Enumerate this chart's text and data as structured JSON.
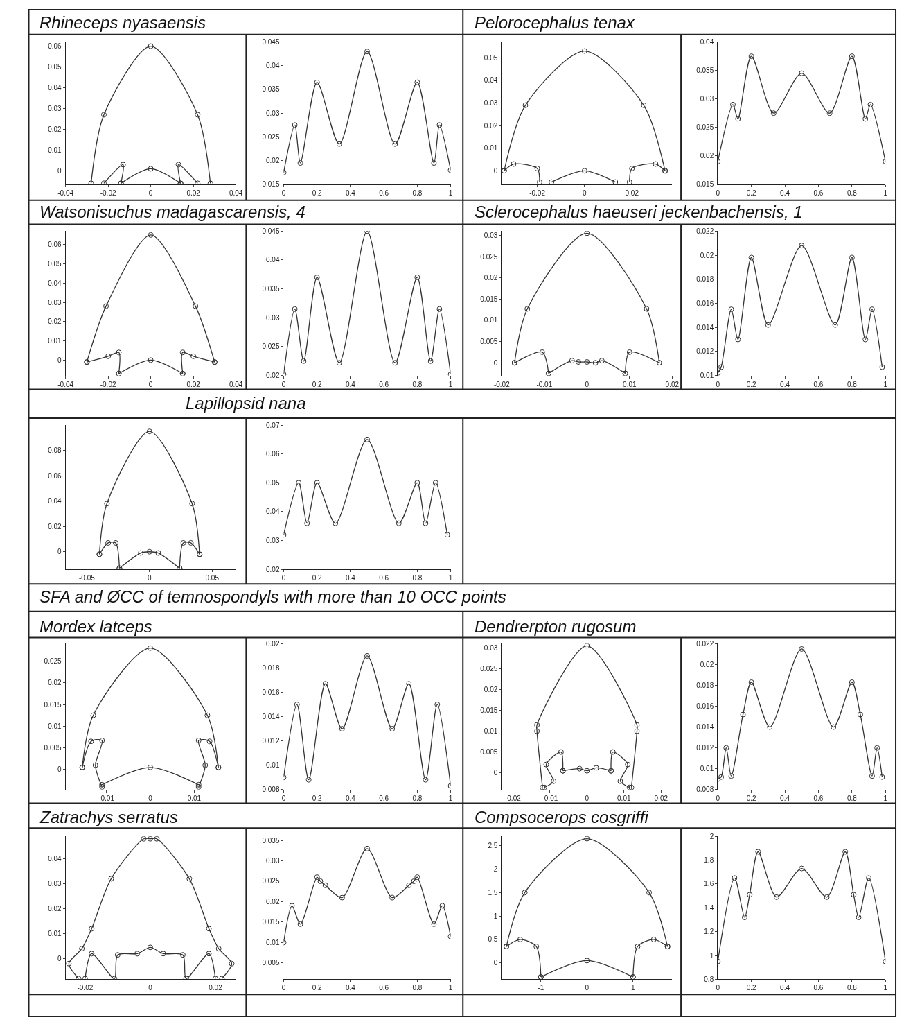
{
  "chart_data": [
    {
      "type": "line",
      "title": "Rhineceps nyasaensis",
      "marker": "circle",
      "line_style": "solid",
      "xlim": [
        -0.04,
        0.04
      ],
      "ylim": [
        -0.0065,
        0.062
      ],
      "xticks": [
        -0.04,
        -0.02,
        0,
        0.02,
        0.04
      ],
      "yticks": [
        0,
        0.01,
        0.02,
        0.03,
        0.04,
        0.05,
        0.06
      ],
      "series": [
        {
          "color": "#333333",
          "x": [
            -0.028,
            -0.022,
            0,
            0.022,
            0.028
          ],
          "values": [
            -0.006,
            0.027,
            0.06,
            0.027,
            -0.006
          ]
        },
        {
          "color": "#333333",
          "x": [
            -0.022,
            -0.013,
            -0.014
          ],
          "values": [
            -0.006,
            0.003,
            -0.006
          ]
        },
        {
          "color": "#333333",
          "x": [
            -0.014,
            0,
            0.014
          ],
          "values": [
            -0.006,
            0.001,
            -0.006
          ]
        },
        {
          "color": "#333333",
          "x": [
            0.014,
            0.013,
            0.022
          ],
          "values": [
            -0.006,
            0.003,
            -0.006
          ]
        }
      ]
    },
    {
      "type": "line",
      "marker": "circle",
      "line_style": "solid",
      "xlim": [
        0,
        1
      ],
      "ylim": [
        0.015,
        0.045
      ],
      "xticks": [
        0,
        0.2,
        0.4,
        0.6,
        0.8,
        1
      ],
      "yticks": [
        0.015,
        0.02,
        0.025,
        0.03,
        0.035,
        0.04,
        0.045
      ],
      "series": [
        {
          "color": "#333333",
          "x": [
            0,
            0.067,
            0.1,
            0.2,
            0.333,
            0.5,
            0.667,
            0.8,
            0.9,
            0.933,
            1
          ],
          "values": [
            0.0175,
            0.0275,
            0.0195,
            0.0365,
            0.0235,
            0.043,
            0.0235,
            0.0365,
            0.0195,
            0.0275,
            0.018
          ]
        }
      ]
    },
    {
      "type": "line",
      "title": "Pelorocephalus tenax",
      "marker": "circle",
      "line_style": "solid",
      "xlim": [
        -0.035,
        0.037
      ],
      "ylim": [
        -0.006,
        0.057
      ],
      "xticks": [
        -0.02,
        0,
        0.02
      ],
      "yticks": [
        0,
        0.01,
        0.02,
        0.03,
        0.04,
        0.05
      ],
      "series": [
        {
          "color": "#333333",
          "x": [
            -0.034,
            -0.025,
            0,
            0.025,
            0.034
          ],
          "values": [
            0,
            0.029,
            0.053,
            0.029,
            0
          ]
        },
        {
          "color": "#333333",
          "x": [
            -0.034,
            -0.03,
            -0.02,
            -0.019
          ],
          "values": [
            0,
            0.003,
            0.001,
            -0.005
          ]
        },
        {
          "color": "#333333",
          "x": [
            -0.014,
            0,
            0.013
          ],
          "values": [
            -0.005,
            0,
            -0.005
          ]
        },
        {
          "color": "#333333",
          "x": [
            0.019,
            0.02,
            0.03,
            0.034
          ],
          "values": [
            -0.005,
            0.001,
            0.003,
            0
          ]
        }
      ]
    },
    {
      "type": "line",
      "marker": "circle",
      "line_style": "solid",
      "xlim": [
        0,
        1
      ],
      "ylim": [
        0.015,
        0.04
      ],
      "xticks": [
        0,
        0.2,
        0.4,
        0.6,
        0.8,
        1
      ],
      "yticks": [
        0.015,
        0.02,
        0.025,
        0.03,
        0.035,
        0.04
      ],
      "series": [
        {
          "color": "#333333",
          "x": [
            0,
            0.09,
            0.12,
            0.2,
            0.333,
            0.5,
            0.667,
            0.8,
            0.88,
            0.91,
            1
          ],
          "values": [
            0.019,
            0.029,
            0.0265,
            0.0375,
            0.0275,
            0.0345,
            0.0275,
            0.0375,
            0.0265,
            0.029,
            0.019
          ]
        }
      ]
    },
    {
      "type": "line",
      "title": "Watsonisuchus madagascarensis, 4",
      "marker": "circle",
      "line_style": "solid",
      "xlim": [
        -0.04,
        0.04
      ],
      "ylim": [
        -0.008,
        0.067
      ],
      "xticks": [
        -0.04,
        -0.02,
        0,
        0.02,
        0.04
      ],
      "yticks": [
        0,
        0.01,
        0.02,
        0.03,
        0.04,
        0.05,
        0.06
      ],
      "series": [
        {
          "color": "#333333",
          "x": [
            -0.03,
            -0.021,
            0,
            0.021,
            0.03
          ],
          "values": [
            -0.001,
            0.028,
            0.065,
            0.028,
            -0.001
          ]
        },
        {
          "color": "#333333",
          "x": [
            -0.03,
            -0.02,
            -0.015,
            -0.015
          ],
          "values": [
            -0.001,
            0.002,
            0.004,
            -0.007
          ]
        },
        {
          "color": "#333333",
          "x": [
            -0.015,
            0,
            0.015
          ],
          "values": [
            -0.007,
            0,
            -0.007
          ]
        },
        {
          "color": "#333333",
          "x": [
            0.015,
            0.015,
            0.02,
            0.03
          ],
          "values": [
            -0.007,
            0.004,
            0.002,
            -0.001
          ]
        }
      ]
    },
    {
      "type": "line",
      "marker": "circle",
      "line_style": "solid",
      "xlim": [
        0,
        1
      ],
      "ylim": [
        0.02,
        0.045
      ],
      "xticks": [
        0,
        0.2,
        0.4,
        0.6,
        0.8,
        1
      ],
      "yticks": [
        0.02,
        0.025,
        0.03,
        0.035,
        0.04,
        0.045
      ],
      "series": [
        {
          "color": "#333333",
          "x": [
            0,
            0.067,
            0.12,
            0.2,
            0.333,
            0.5,
            0.667,
            0.8,
            0.88,
            0.933,
            1
          ],
          "values": [
            0.0202,
            0.0315,
            0.0225,
            0.037,
            0.0222,
            0.045,
            0.0222,
            0.037,
            0.0225,
            0.0315,
            0.0202
          ]
        }
      ]
    },
    {
      "type": "line",
      "title": "Sclerocephalus haeuseri jeckenbachensis, 1",
      "marker": "circle",
      "line_style": "solid",
      "xlim": [
        -0.02,
        0.02
      ],
      "ylim": [
        -0.003,
        0.031
      ],
      "xticks": [
        -0.02,
        -0.01,
        0,
        0.01,
        0.02
      ],
      "yticks": [
        0,
        0.005,
        0.01,
        0.015,
        0.02,
        0.025,
        0.03
      ],
      "series": [
        {
          "color": "#333333",
          "x": [
            -0.017,
            -0.014,
            0,
            0.014,
            0.017
          ],
          "values": [
            0,
            0.0127,
            0.0305,
            0.0127,
            0
          ]
        },
        {
          "color": "#333333",
          "x": [
            -0.017,
            -0.0105,
            -0.009
          ],
          "values": [
            0,
            0.0025,
            -0.0025
          ]
        },
        {
          "color": "#333333",
          "x": [
            -0.009,
            -0.0035,
            -0.002,
            0,
            0.002,
            0.0035,
            0.009
          ],
          "values": [
            -0.0025,
            0.0005,
            0.0002,
            0.0002,
            0,
            0.0005,
            -0.0025
          ]
        },
        {
          "color": "#333333",
          "x": [
            0.009,
            0.01,
            0.017
          ],
          "values": [
            -0.0025,
            0.0025,
            0
          ]
        }
      ]
    },
    {
      "type": "line",
      "marker": "circle",
      "line_style": "solid",
      "xlim": [
        0,
        1
      ],
      "ylim": [
        0.01,
        0.022
      ],
      "xticks": [
        0,
        0.2,
        0.4,
        0.6,
        0.8,
        1
      ],
      "yticks": [
        0.01,
        0.012,
        0.014,
        0.016,
        0.018,
        0.02,
        0.022
      ],
      "series": [
        {
          "color": "#333333",
          "x": [
            0,
            0.02,
            0.08,
            0.12,
            0.2,
            0.3,
            0.5,
            0.7,
            0.8,
            0.88,
            0.92,
            0.98
          ],
          "values": [
            0.0102,
            0.0107,
            0.0155,
            0.013,
            0.0198,
            0.0142,
            0.0208,
            0.0142,
            0.0198,
            0.013,
            0.0155,
            0.0107
          ]
        }
      ]
    },
    {
      "type": "line",
      "title": "Lapillopsid nana",
      "marker": "circle",
      "line_style": "solid",
      "xlim": [
        -0.067,
        0.069
      ],
      "ylim": [
        -0.014,
        0.1
      ],
      "xticks": [
        -0.05,
        0,
        0.05
      ],
      "yticks": [
        0,
        0.02,
        0.04,
        0.06,
        0.08
      ],
      "series": [
        {
          "color": "#333333",
          "x": [
            -0.04,
            -0.034,
            0,
            0.034,
            0.04
          ],
          "values": [
            -0.002,
            0.038,
            0.095,
            0.038,
            -0.002
          ]
        },
        {
          "color": "#333333",
          "x": [
            -0.04,
            -0.033,
            -0.027,
            -0.024
          ],
          "values": [
            -0.002,
            0.007,
            0.007,
            -0.013
          ]
        },
        {
          "color": "#333333",
          "x": [
            -0.024,
            -0.007,
            0,
            0.007,
            0.024
          ],
          "values": [
            -0.013,
            -0.001,
            0,
            -0.001,
            -0.013
          ]
        },
        {
          "color": "#333333",
          "x": [
            0.024,
            0.027,
            0.033,
            0.04
          ],
          "values": [
            -0.013,
            0.007,
            0.007,
            -0.002
          ]
        }
      ]
    },
    {
      "type": "line",
      "marker": "circle",
      "line_style": "solid",
      "xlim": [
        0,
        1
      ],
      "ylim": [
        0.02,
        0.07
      ],
      "xticks": [
        0,
        0.2,
        0.4,
        0.6,
        0.8,
        1
      ],
      "yticks": [
        0.02,
        0.03,
        0.04,
        0.05,
        0.06,
        0.07
      ],
      "series": [
        {
          "color": "#333333",
          "x": [
            0,
            0.09,
            0.14,
            0.2,
            0.31,
            0.5,
            0.69,
            0.8,
            0.85,
            0.91,
            0.98
          ],
          "values": [
            0.032,
            0.05,
            0.036,
            0.05,
            0.036,
            0.065,
            0.036,
            0.05,
            0.036,
            0.05,
            0.032
          ]
        }
      ]
    },
    {
      "type": "line",
      "title": "Mordex latceps",
      "annotations": [
        "SFA and ØCC of temnospondyls with more than 10 OCC points"
      ],
      "marker": "circle",
      "line_style": "solid",
      "xlim": [
        -0.0193,
        0.0195
      ],
      "ylim": [
        -0.0046,
        0.029
      ],
      "xticks": [
        -0.01,
        0,
        0.01
      ],
      "yticks": [
        0,
        0.005,
        0.01,
        0.015,
        0.02,
        0.025
      ],
      "series": [
        {
          "color": "#333333",
          "x": [
            -0.0155,
            -0.013,
            0,
            0.013,
            0.0155
          ],
          "values": [
            0.0005,
            0.0125,
            0.028,
            0.0125,
            0.0005
          ]
        },
        {
          "color": "#333333",
          "x": [
            -0.0155,
            -0.0135,
            -0.011,
            -0.0125,
            -0.011
          ],
          "values": [
            0.0005,
            0.0065,
            0.0067,
            0.001,
            -0.004
          ]
        },
        {
          "color": "#333333",
          "x": [
            -0.011,
            0,
            0.011
          ],
          "values": [
            -0.0035,
            0.0005,
            -0.0035
          ]
        },
        {
          "color": "#333333",
          "x": [
            0.011,
            0.0125,
            0.011,
            0.0135,
            0.0155
          ],
          "values": [
            -0.004,
            0.001,
            0.0067,
            0.0065,
            0.0005
          ]
        }
      ]
    },
    {
      "type": "line",
      "marker": "circle",
      "line_style": "solid",
      "xlim": [
        0,
        1
      ],
      "ylim": [
        0.008,
        0.02
      ],
      "xticks": [
        0,
        0.2,
        0.4,
        0.6,
        0.8,
        1
      ],
      "yticks": [
        0.008,
        0.01,
        0.012,
        0.014,
        0.016,
        0.018,
        0.02
      ],
      "series": [
        {
          "color": "#333333",
          "x": [
            0,
            0.08,
            0.15,
            0.25,
            0.35,
            0.5,
            0.65,
            0.75,
            0.85,
            0.92,
            1
          ],
          "values": [
            0.009,
            0.015,
            0.0088,
            0.0167,
            0.013,
            0.019,
            0.013,
            0.0167,
            0.0088,
            0.015,
            0.0083
          ]
        }
      ]
    },
    {
      "type": "line",
      "title": "Dendrerpton rugosum",
      "marker": "circle",
      "line_style": "solid",
      "xlim": [
        -0.023,
        0.023
      ],
      "ylim": [
        -0.004,
        0.031
      ],
      "xticks": [
        -0.02,
        -0.01,
        0,
        0.01,
        0.02
      ],
      "yticks": [
        0,
        0.005,
        0.01,
        0.015,
        0.02,
        0.025,
        0.03
      ],
      "series": [
        {
          "color": "#333333",
          "x": [
            -0.012,
            -0.0135,
            -0.0135,
            0,
            0.0135,
            0.0135,
            0.012
          ],
          "values": [
            -0.0035,
            0.01,
            0.0115,
            0.0305,
            0.0115,
            0.01,
            -0.0035
          ]
        },
        {
          "color": "#333333",
          "x": [
            -0.0115,
            -0.009,
            -0.011,
            -0.007,
            -0.0065
          ],
          "values": [
            -0.0035,
            -0.002,
            0.002,
            0.005,
            0.0005
          ]
        },
        {
          "color": "#333333",
          "x": [
            -0.0065,
            -0.002,
            0,
            0.0025,
            0.0065
          ],
          "values": [
            0.0005,
            0.001,
            0.0005,
            0.0012,
            0.0005
          ]
        },
        {
          "color": "#333333",
          "x": [
            0.0065,
            0.007,
            0.011,
            0.009,
            0.0115
          ],
          "values": [
            0.0005,
            0.005,
            0.002,
            -0.002,
            -0.0035
          ]
        }
      ]
    },
    {
      "type": "line",
      "marker": "circle",
      "line_style": "solid",
      "xlim": [
        0,
        1
      ],
      "ylim": [
        0.008,
        0.022
      ],
      "xticks": [
        0,
        0.2,
        0.4,
        0.6,
        0.8,
        1
      ],
      "yticks": [
        0.008,
        0.01,
        0.012,
        0.014,
        0.016,
        0.018,
        0.02,
        0.022
      ],
      "series": [
        {
          "color": "#333333",
          "x": [
            0,
            0.02,
            0.05,
            0.08,
            0.15,
            0.2,
            0.31,
            0.5,
            0.69,
            0.8,
            0.85,
            0.92,
            0.95,
            0.98
          ],
          "values": [
            0.009,
            0.0092,
            0.012,
            0.0093,
            0.0152,
            0.0183,
            0.014,
            0.0215,
            0.014,
            0.0183,
            0.0152,
            0.0093,
            0.012,
            0.0092
          ]
        }
      ]
    },
    {
      "type": "line",
      "title": "Zatrachys serratus",
      "marker": "circle",
      "line_style": "solid",
      "xlim": [
        -0.026,
        0.0263
      ],
      "ylim": [
        -0.0083,
        0.049
      ],
      "xticks": [
        -0.02,
        0,
        0.02
      ],
      "yticks": [
        0,
        0.01,
        0.02,
        0.03,
        0.04
      ],
      "series": [
        {
          "color": "#333333",
          "x": [
            -0.022,
            -0.025,
            -0.021,
            -0.018,
            -0.012,
            -0.002,
            0,
            0.002,
            0.012,
            0.018,
            0.021,
            0.025,
            0.022
          ],
          "values": [
            -0.008,
            -0.002,
            0.004,
            0.012,
            0.032,
            0.048,
            0.048,
            0.048,
            0.032,
            0.012,
            0.004,
            -0.002,
            -0.008
          ]
        },
        {
          "color": "#333333",
          "x": [
            -0.02,
            -0.018,
            -0.011,
            -0.01,
            -0.004,
            0,
            0.004,
            0.01,
            0.011,
            0.018,
            0.02
          ],
          "values": [
            -0.008,
            0.002,
            -0.008,
            0.0015,
            0.002,
            0.0045,
            0.002,
            0.0015,
            -0.008,
            0.002,
            -0.008
          ]
        }
      ]
    },
    {
      "type": "line",
      "marker": "circle",
      "line_style": "solid",
      "xlim": [
        0,
        1
      ],
      "ylim": [
        0.001,
        0.036
      ],
      "xticks": [
        0,
        0.2,
        0.4,
        0.6,
        0.8,
        1
      ],
      "yticks": [
        0.005,
        0.01,
        0.015,
        0.02,
        0.025,
        0.03,
        0.035
      ],
      "series": [
        {
          "color": "#333333",
          "x": [
            0,
            0.05,
            0.1,
            0.2,
            0.22,
            0.25,
            0.35,
            0.5,
            0.65,
            0.75,
            0.78,
            0.8,
            0.9,
            0.95,
            1
          ],
          "values": [
            0.01,
            0.019,
            0.0145,
            0.026,
            0.025,
            0.024,
            0.021,
            0.033,
            0.021,
            0.024,
            0.025,
            0.026,
            0.0145,
            0.019,
            0.0115
          ]
        }
      ]
    },
    {
      "type": "line",
      "title": "Compsocerops cosgriffi",
      "marker": "circle",
      "line_style": "solid",
      "xlim": [
        -1.85,
        1.85
      ],
      "ylim": [
        -0.35,
        2.7
      ],
      "xticks": [
        -1,
        0,
        1
      ],
      "yticks": [
        0,
        0.5,
        1,
        1.5,
        2,
        2.5
      ],
      "series": [
        {
          "color": "#333333",
          "x": [
            -1.75,
            -1.35,
            0,
            1.35,
            1.75
          ],
          "values": [
            0.35,
            1.5,
            2.65,
            1.5,
            0.35
          ]
        },
        {
          "color": "#333333",
          "x": [
            -1.75,
            -1.45,
            -1.1,
            -1
          ],
          "values": [
            0.35,
            0.5,
            0.35,
            -0.3
          ]
        },
        {
          "color": "#333333",
          "x": [
            -1,
            0,
            1
          ],
          "values": [
            -0.3,
            0.05,
            -0.3
          ]
        },
        {
          "color": "#333333",
          "x": [
            1,
            1.1,
            1.45,
            1.75
          ],
          "values": [
            -0.3,
            0.35,
            0.5,
            0.35
          ]
        }
      ]
    },
    {
      "type": "line",
      "marker": "circle",
      "line_style": "solid",
      "xlim": [
        0,
        1
      ],
      "ylim": [
        0.8,
        2
      ],
      "xticks": [
        0,
        0.2,
        0.4,
        0.6,
        0.8,
        1
      ],
      "yticks": [
        0.8,
        1,
        1.2,
        1.4,
        1.6,
        1.8,
        2
      ],
      "series": [
        {
          "color": "#333333",
          "x": [
            0,
            0.1,
            0.16,
            0.19,
            0.24,
            0.35,
            0.5,
            0.65,
            0.76,
            0.81,
            0.84,
            0.9,
            1
          ],
          "values": [
            0.95,
            1.65,
            1.32,
            1.51,
            1.87,
            1.49,
            1.73,
            1.49,
            1.87,
            1.51,
            1.32,
            1.65,
            0.95
          ]
        }
      ]
    }
  ]
}
